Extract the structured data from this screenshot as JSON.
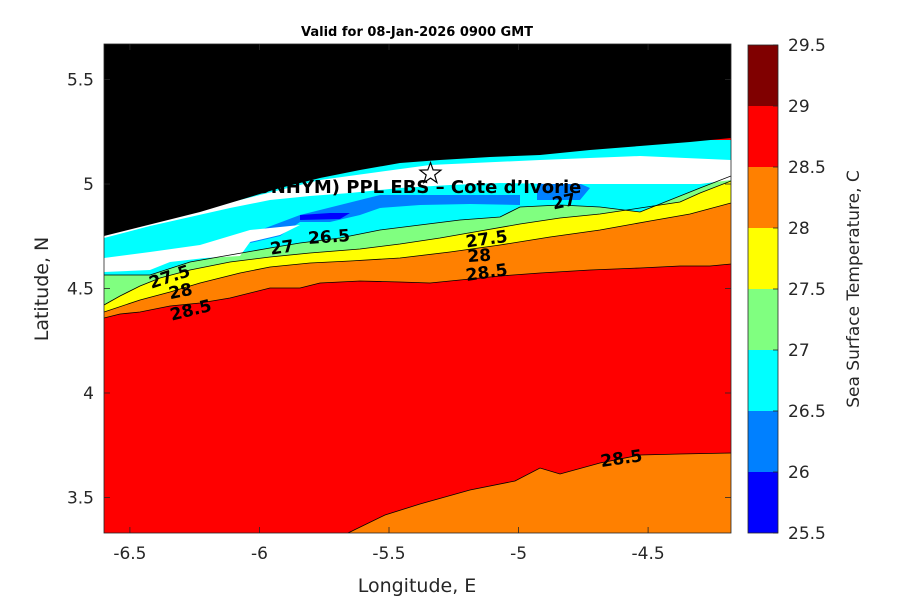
{
  "title": "Valid for 08-Jan-2026 0900 GMT",
  "site_label": "A (ONHYM) PPL EBS  – Cote d’Ivorie",
  "map": {
    "xlabel": "Longitude, E",
    "ylabel": "Latitude, N",
    "xlim": [
      -6.6,
      -4.18
    ],
    "ylim": [
      3.33,
      5.67
    ],
    "xticks": [
      -6.5,
      -6,
      -5.5,
      -5,
      -4.5
    ],
    "xtick_labels": [
      "-6.5",
      "-6",
      "-5.5",
      "-5",
      "-4.5"
    ],
    "yticks": [
      3.5,
      4,
      4.5,
      5,
      5.5
    ],
    "ytick_labels": [
      "3.5",
      "4",
      "4.5",
      "5",
      "5.5"
    ],
    "star": {
      "lon": -5.34,
      "lat": 5.05
    },
    "land_color": "#000000",
    "nodata_color": "#ffffff"
  },
  "colorbar": {
    "label": "Sea Surface Temperature, C",
    "levels": [
      25.5,
      26,
      26.5,
      27,
      27.5,
      28,
      28.5,
      29,
      29.5
    ],
    "level_labels": [
      "25.5",
      "26",
      "26.5",
      "27",
      "27.5",
      "28",
      "28.5",
      "29",
      "29.5"
    ],
    "colors": [
      "#0000ff",
      "#0080ff",
      "#00ffff",
      "#80ff80",
      "#ffff00",
      "#ff8000",
      "#ff0000",
      "#800000"
    ]
  },
  "contour_labels": [
    {
      "text": "27",
      "lon": -4.82,
      "lat": 4.89,
      "rotate": -12
    },
    {
      "text": "26.5",
      "lon": -5.73,
      "lat": 4.72,
      "rotate": -4
    },
    {
      "text": "27",
      "lon": -5.91,
      "lat": 4.67,
      "rotate": -8
    },
    {
      "text": "27.5",
      "lon": -5.12,
      "lat": 4.71,
      "rotate": -8
    },
    {
      "text": "28",
      "lon": -5.15,
      "lat": 4.63,
      "rotate": -4
    },
    {
      "text": "28.5",
      "lon": -5.12,
      "lat": 4.55,
      "rotate": -8
    },
    {
      "text": "27.5",
      "lon": -6.34,
      "lat": 4.53,
      "rotate": -18
    },
    {
      "text": "28",
      "lon": -6.3,
      "lat": 4.46,
      "rotate": -12
    },
    {
      "text": "28.5",
      "lon": -6.26,
      "lat": 4.37,
      "rotate": -14
    },
    {
      "text": "28.5",
      "lon": -4.6,
      "lat": 3.66,
      "rotate": -8
    }
  ],
  "chart_data": {
    "type": "heatmap",
    "title": "Valid for 08-Jan-2026 0900 GMT",
    "xlabel": "Longitude, E",
    "ylabel": "Latitude, N",
    "xlim": [
      -6.6,
      -4.18
    ],
    "ylim": [
      3.33,
      5.67
    ],
    "colorbar_label": "Sea Surface Temperature, C",
    "colorbar_range": [
      25.5,
      29.5
    ],
    "contour_levels": [
      26.5,
      27,
      27.5,
      28,
      28.5
    ]
  }
}
